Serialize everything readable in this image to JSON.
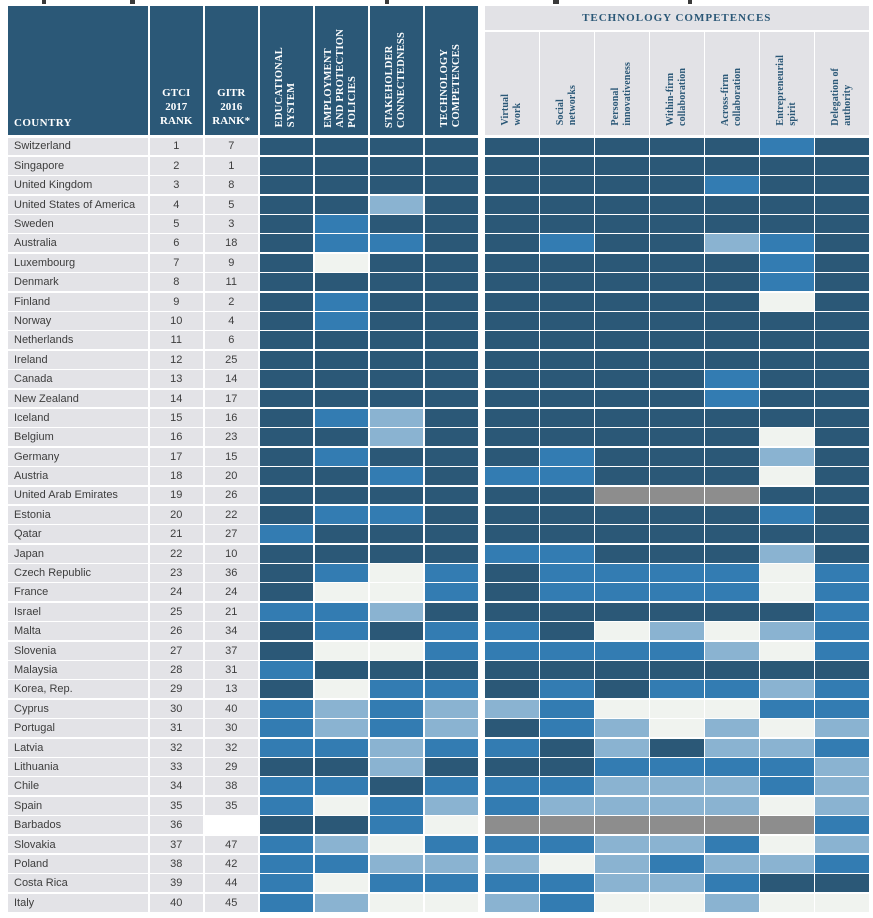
{
  "palette": {
    "D": "#2b5877",
    "M": "#337cb2",
    "L": "#8ab3d1",
    "W": "#f0f3ef",
    "G": "#8d8d8d"
  },
  "header": {
    "country_label": "COUNTRY",
    "gtci_label": "GTCI\n2017\nRANK",
    "gitr_label": "GITR\n2016\nRANK*",
    "pillars": [
      "EDUCATIONAL\nSYSTEM",
      "EMPLOYMENT\nAND PROTECTION\nPOLICIES",
      "STAKEHOLDER\nCONNECTEDNESS",
      "TECHNOLOGY\nCOMPETENCES"
    ],
    "tech_group_label": "TECHNOLOGY COMPETENCES",
    "tech_columns": [
      "Virtual\nwork",
      "Social\nnetworks",
      "Personal\ninnovativeness",
      "Within-firm\ncollaboration",
      "Across-firm\ncollaboration",
      "Entrepreneurial\nspirit",
      "Delegation of\nauthority"
    ]
  },
  "rows": [
    {
      "country": "Switzerland",
      "gtci": "1",
      "gitr": "7",
      "levels": "DDDDDDDDDMD"
    },
    {
      "country": "Singapore",
      "gtci": "2",
      "gitr": "1",
      "levels": "DDDDDDDDDDD"
    },
    {
      "country": "United Kingdom",
      "gtci": "3",
      "gitr": "8",
      "levels": "DDDDDDDDMDD"
    },
    {
      "country": "United States of America",
      "gtci": "4",
      "gitr": "5",
      "levels": "DDLDDDDDDDD"
    },
    {
      "country": "Sweden",
      "gtci": "5",
      "gitr": "3",
      "levels": "DMDDDDDDDDD"
    },
    {
      "country": "Australia",
      "gtci": "6",
      "gitr": "18",
      "levels": "DMMDDMDDLMD"
    },
    {
      "country": "Luxembourg",
      "gtci": "7",
      "gitr": "9",
      "levels": "DWDDDDDDDMD"
    },
    {
      "country": "Denmark",
      "gtci": "8",
      "gitr": "11",
      "levels": "DDDDDDDDDMD"
    },
    {
      "country": "Finland",
      "gtci": "9",
      "gitr": "2",
      "levels": "DMDDDDDDDWD"
    },
    {
      "country": "Norway",
      "gtci": "10",
      "gitr": "4",
      "levels": "DMDDDDDDDDD"
    },
    {
      "country": "Netherlands",
      "gtci": "11",
      "gitr": "6",
      "levels": "DDDDDDDDDDD"
    },
    {
      "country": "Ireland",
      "gtci": "12",
      "gitr": "25",
      "levels": "DDDDDDDDDDD"
    },
    {
      "country": "Canada",
      "gtci": "13",
      "gitr": "14",
      "levels": "DDDDDDDDMDD"
    },
    {
      "country": "New Zealand",
      "gtci": "14",
      "gitr": "17",
      "levels": "DDDDDDDDMDD"
    },
    {
      "country": "Iceland",
      "gtci": "15",
      "gitr": "16",
      "levels": "DMLDDDDDDDD"
    },
    {
      "country": "Belgium",
      "gtci": "16",
      "gitr": "23",
      "levels": "DDLDDDDDDWD"
    },
    {
      "country": "Germany",
      "gtci": "17",
      "gitr": "15",
      "levels": "DMDDDMDDDLD"
    },
    {
      "country": "Austria",
      "gtci": "18",
      "gitr": "20",
      "levels": "DDMDMMDDDWD"
    },
    {
      "country": "United Arab Emirates",
      "gtci": "19",
      "gitr": "26",
      "levels": "DDDDDDGGGDD"
    },
    {
      "country": "Estonia",
      "gtci": "20",
      "gitr": "22",
      "levels": "DMMDDDDDDMD"
    },
    {
      "country": "Qatar",
      "gtci": "21",
      "gitr": "27",
      "levels": "MDDDDDDDDDD"
    },
    {
      "country": "Japan",
      "gtci": "22",
      "gitr": "10",
      "levels": "DDDDMMDDDLD"
    },
    {
      "country": "Czech Republic",
      "gtci": "23",
      "gitr": "36",
      "levels": "DMWMDMMMMWM"
    },
    {
      "country": "France",
      "gtci": "24",
      "gitr": "24",
      "levels": "DWWMDMMMMWM"
    },
    {
      "country": "Israel",
      "gtci": "25",
      "gitr": "21",
      "levels": "MMLDDDDDDDM"
    },
    {
      "country": "Malta",
      "gtci": "26",
      "gitr": "34",
      "levels": "DMDMMDWLWLM"
    },
    {
      "country": "Slovenia",
      "gtci": "27",
      "gitr": "37",
      "levels": "DWWMMMMMLWM"
    },
    {
      "country": "Malaysia",
      "gtci": "28",
      "gitr": "31",
      "levels": "MDDDDDDDDDD"
    },
    {
      "country": "Korea, Rep.",
      "gtci": "29",
      "gitr": "13",
      "levels": "DWMMDMDMMLM"
    },
    {
      "country": "Cyprus",
      "gtci": "30",
      "gitr": "40",
      "levels": "MLMLLMWWWMM"
    },
    {
      "country": "Portugal",
      "gtci": "31",
      "gitr": "30",
      "levels": "MLMLDMLWLWL"
    },
    {
      "country": "Latvia",
      "gtci": "32",
      "gitr": "32",
      "levels": "MMLMMDLDLLM"
    },
    {
      "country": "Lithuania",
      "gtci": "33",
      "gitr": "29",
      "levels": "DDLDDDMMMML"
    },
    {
      "country": "Chile",
      "gtci": "34",
      "gitr": "38",
      "levels": "MMDMMMLLLML"
    },
    {
      "country": "Spain",
      "gtci": "35",
      "gitr": "35",
      "levels": "MWMLMLLLLWL"
    },
    {
      "country": "Barbados",
      "gtci": "36",
      "gitr": "",
      "levels": "DDMWGGGGGGM"
    },
    {
      "country": "Slovakia",
      "gtci": "37",
      "gitr": "47",
      "levels": "MLWMMMLLMWL"
    },
    {
      "country": "Poland",
      "gtci": "38",
      "gitr": "42",
      "levels": "MMLLLWLMLLM"
    },
    {
      "country": "Costa Rica",
      "gtci": "39",
      "gitr": "44",
      "levels": "MWMMMMLLMDD"
    },
    {
      "country": "Italy",
      "gtci": "40",
      "gitr": "45",
      "levels": "MLWWLMWWLWW"
    }
  ],
  "chart_data": {
    "type": "heatmap",
    "title": "",
    "row_header": "COUNTRY",
    "rank_columns": [
      "GTCI 2017 RANK",
      "GITR 2016 RANK*"
    ],
    "group_header": "TECHNOLOGY COMPETENCES",
    "columns": [
      "Educational system",
      "Employment and protection policies",
      "Stakeholder connectedness",
      "Technology competences",
      "Virtual work",
      "Social networks",
      "Personal innovativeness",
      "Within-firm collaboration",
      "Across-firm collaboration",
      "Entrepreneurial spirit",
      "Delegation of authority"
    ],
    "legend": {
      "D": "dark blue - strongest band",
      "M": "medium blue",
      "L": "light blue",
      "W": "near-white - weakest band",
      "G": "gray - no data"
    },
    "countries": [
      "Switzerland",
      "Singapore",
      "United Kingdom",
      "United States of America",
      "Sweden",
      "Australia",
      "Luxembourg",
      "Denmark",
      "Finland",
      "Norway",
      "Netherlands",
      "Ireland",
      "Canada",
      "New Zealand",
      "Iceland",
      "Belgium",
      "Germany",
      "Austria",
      "United Arab Emirates",
      "Estonia",
      "Qatar",
      "Japan",
      "Czech Republic",
      "France",
      "Israel",
      "Malta",
      "Slovenia",
      "Malaysia",
      "Korea, Rep.",
      "Cyprus",
      "Portugal",
      "Latvia",
      "Lithuania",
      "Chile",
      "Spain",
      "Barbados",
      "Slovakia",
      "Poland",
      "Costa Rica",
      "Italy"
    ],
    "gtci_2017_rank": [
      1,
      2,
      3,
      4,
      5,
      6,
      7,
      8,
      9,
      10,
      11,
      12,
      13,
      14,
      15,
      16,
      17,
      18,
      19,
      20,
      21,
      22,
      23,
      24,
      25,
      26,
      27,
      28,
      29,
      30,
      31,
      32,
      33,
      34,
      35,
      36,
      37,
      38,
      39,
      40
    ],
    "gitr_2016_rank": [
      7,
      1,
      8,
      5,
      3,
      18,
      9,
      11,
      2,
      4,
      6,
      25,
      14,
      17,
      16,
      23,
      15,
      20,
      26,
      22,
      27,
      10,
      36,
      24,
      21,
      34,
      37,
      31,
      13,
      40,
      30,
      32,
      29,
      38,
      35,
      null,
      47,
      42,
      44,
      45
    ],
    "levels_matrix": [
      "DDDDDDDDDMD",
      "DDDDDDDDDDD",
      "DDDDDDDDMDD",
      "DDLDDDDDDDD",
      "DMDDDDDDDDD",
      "DMMDDMDDLMD",
      "DWDDDDDDDMD",
      "DDDDDDDDDMD",
      "DMDDDDDDDWD",
      "DMDDDDDDDDD",
      "DDDDDDDDDDD",
      "DDDDDDDDDDD",
      "DDDDDDDDMDD",
      "DDDDDDDDMDD",
      "DMLDDDDDDDD",
      "DDLDDDDDDWD",
      "DMDDDMDDDLD",
      "DDMDMMDDDWD",
      "DDDDDDGGGDD",
      "DMMDDDDDDMD",
      "MDDDDDDDDDD",
      "DDDDMMDDDLD",
      "DMWMDMMMMWM",
      "DWWMDMMMMWM",
      "MMLDDDDDDDM",
      "DMDMMDWLWLM",
      "DWWMMMMMLWM",
      "MDDDDDDDDDD",
      "DWMMDMDMMLM",
      "MLMLLMWWWMM",
      "MLMLDMLWLWL",
      "MMLMMDLDLLM",
      "DDLDDDMMMML",
      "MMDMMMLLLML",
      "MWMLMLLLLWL",
      "DDMWGGGGGGM",
      "MLWMMMLLMWL",
      "MMLLLWLMLLM",
      "MWMMMMLLMDD",
      "MLWWLMWWLWW"
    ]
  }
}
